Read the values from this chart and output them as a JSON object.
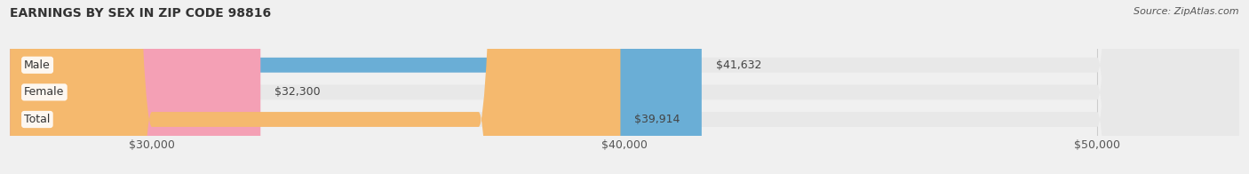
{
  "title": "EARNINGS BY SEX IN ZIP CODE 98816",
  "source_text": "Source: ZipAtlas.com",
  "categories": [
    "Male",
    "Female",
    "Total"
  ],
  "values": [
    41632,
    32300,
    39914
  ],
  "bar_colors": [
    "#6aaed6",
    "#f4a0b5",
    "#f5b96e"
  ],
  "value_labels": [
    "$41,632",
    "$32,300",
    "$39,914"
  ],
  "xlim": [
    27000,
    53000
  ],
  "xticks": [
    30000,
    40000,
    50000
  ],
  "xtick_labels": [
    "$30,000",
    "$40,000",
    "$50,000"
  ],
  "bar_height": 0.55,
  "background_color": "#f0f0f0",
  "bar_bg_color": "#e8e8e8",
  "title_fontsize": 10,
  "label_fontsize": 9,
  "value_fontsize": 9,
  "source_fontsize": 8
}
